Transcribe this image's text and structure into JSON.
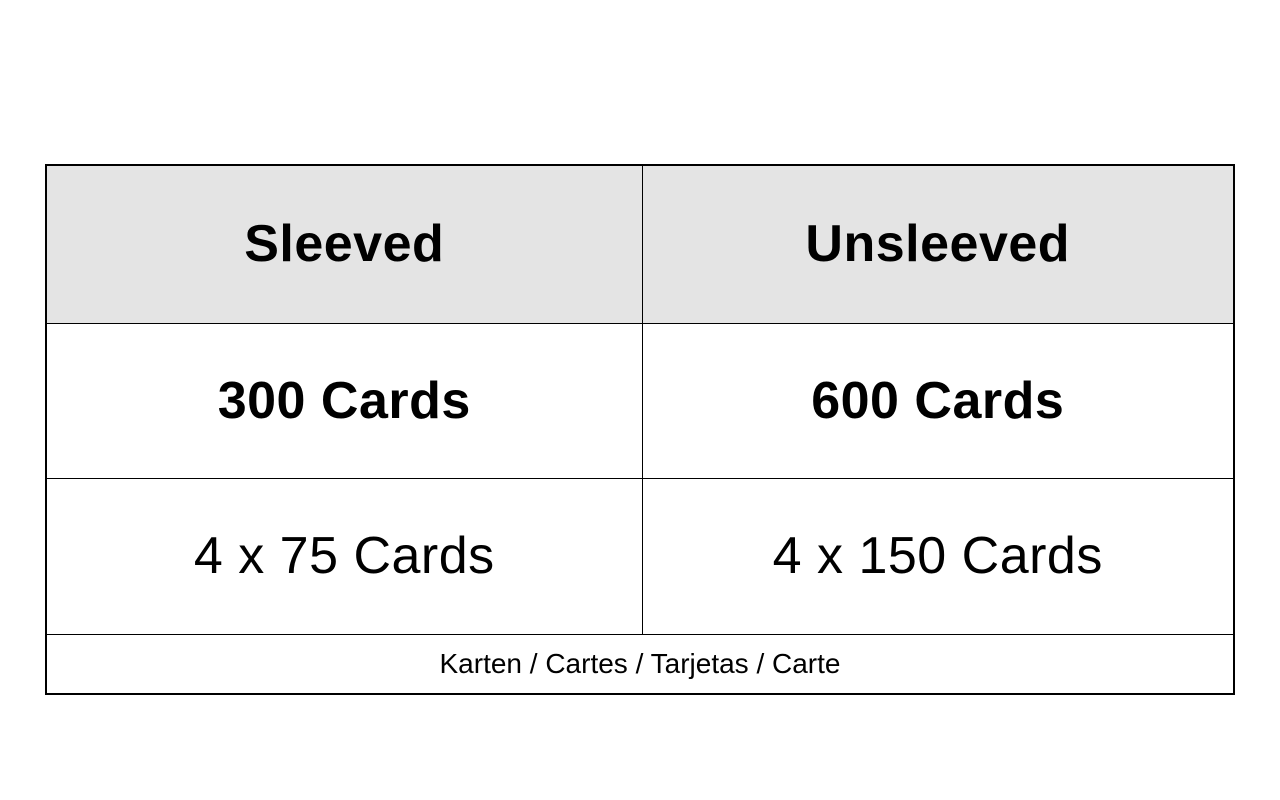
{
  "page": {
    "background": "#ffffff"
  },
  "table": {
    "description": "card-capacity-comparison-table",
    "headers": [
      "Sleeved",
      "Unsleeved"
    ],
    "rows": [
      [
        "300 Cards",
        "600 Cards"
      ],
      [
        "4 x 75 Cards",
        "4 x 150 Cards"
      ]
    ],
    "footer": "Karten / Cartes / Tarjetas / Carte",
    "colors": {
      "header_bg": "#e4e4e4",
      "border": "#000000",
      "text": "#000000"
    }
  }
}
